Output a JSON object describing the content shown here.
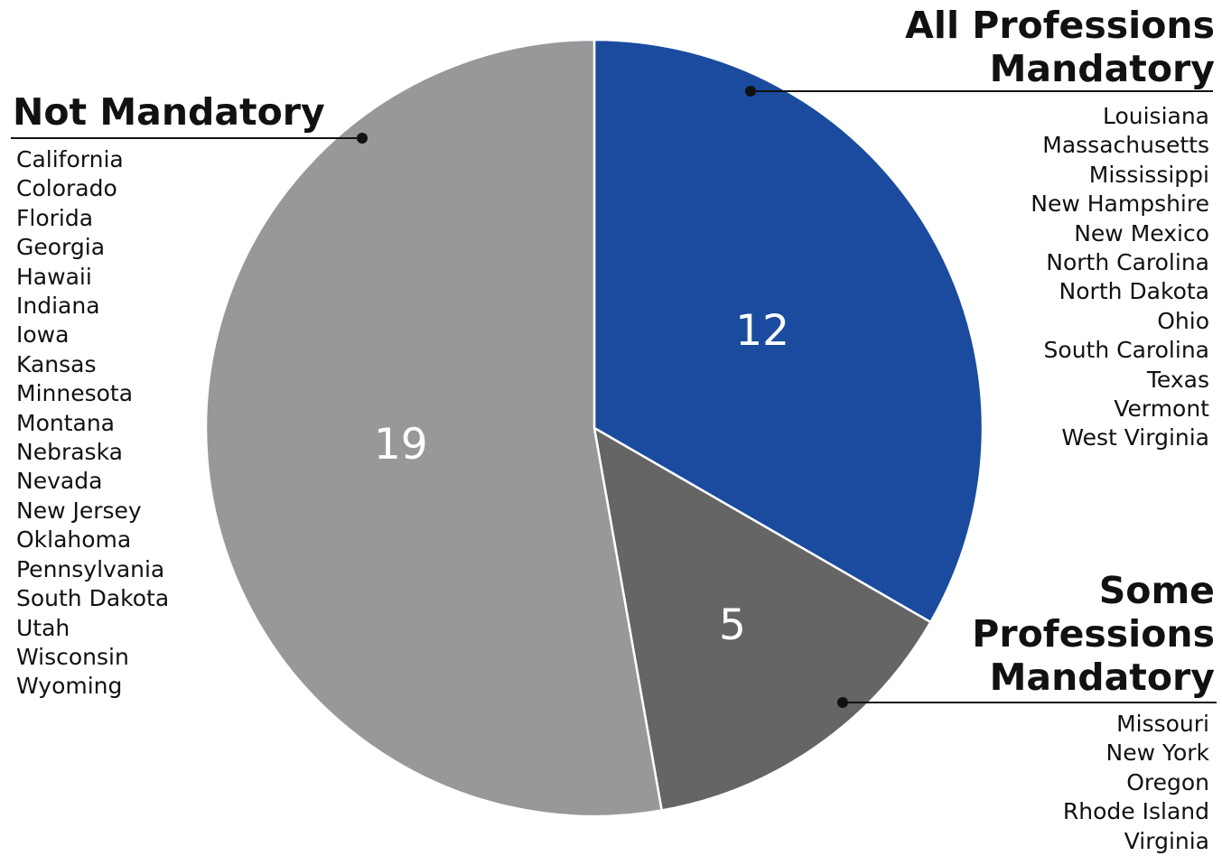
{
  "chart_data": {
    "type": "pie",
    "slices": [
      {
        "key": "all",
        "name": "All Professions Mandatory",
        "value": 12,
        "color": "#1a4b9e",
        "states": [
          "Louisiana",
          "Massachusetts",
          "Mississippi",
          "New Hampshire",
          "New Mexico",
          "North Carolina",
          "North Dakota",
          "Ohio",
          "South Carolina",
          "Texas",
          "Vermont",
          "West Virginia"
        ]
      },
      {
        "key": "some",
        "name": "Some Professions Mandatory",
        "value": 5,
        "color": "#646564",
        "states": [
          "Missouri",
          "New York",
          "Oregon",
          "Rhode Island",
          "Virginia"
        ]
      },
      {
        "key": "not",
        "name": "Not Mandatory",
        "value": 19,
        "color": "#97989a",
        "states": [
          "California",
          "Colorado",
          "Florida",
          "Georgia",
          "Hawaii",
          "Indiana",
          "Iowa",
          "Kansas",
          "Minnesota",
          "Montana",
          "Nebraska",
          "Nevada",
          "New Jersey",
          "Oklahoma",
          "Pennsylvania",
          "South Dakota",
          "Utah",
          "Wisconsin",
          "Wyoming"
        ]
      }
    ],
    "start": "top",
    "direction": "clockwise"
  },
  "labels": {
    "all_title_lines": [
      "All Professions",
      "Mandatory"
    ],
    "some_title_lines": [
      "Some",
      "Professions",
      "Mandatory"
    ],
    "not_title_lines": [
      "Not Mandatory"
    ]
  }
}
